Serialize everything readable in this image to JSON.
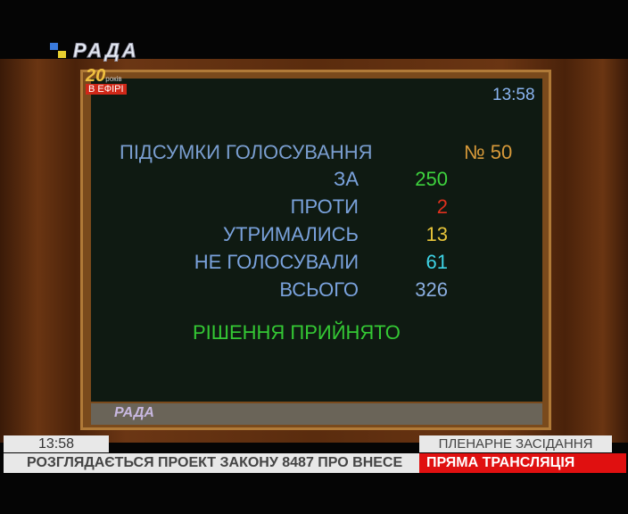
{
  "channel": {
    "logo": "РАДА",
    "anniversary_number": "20",
    "anniversary_unit": "років",
    "anniversary_caption": "В ЕФІРІ"
  },
  "board": {
    "time": "13:58",
    "title": "ПІДСУМКИ ГОЛОСУВАННЯ",
    "vote_number": "№ 50",
    "rows": [
      {
        "label": "ЗА",
        "value": "250",
        "color": "#3ed23e"
      },
      {
        "label": "ПРОТИ",
        "value": "2",
        "color": "#e0301e"
      },
      {
        "label": "УТРИМАЛИСЬ",
        "value": "13",
        "color": "#e6c43a"
      },
      {
        "label": "НЕ ГОЛОСУВАЛИ",
        "value": "61",
        "color": "#3ed4e6"
      },
      {
        "label": "ВСЬОГО",
        "value": "326",
        "color": "#8aaee0"
      }
    ],
    "decision": "РІШЕННЯ ПРИЙНЯТО",
    "footer_logo": "РАДА"
  },
  "lower_third": {
    "time": "13:58",
    "session": "ПЛЕНАРНЕ ЗАСІДАННЯ",
    "ticker": "РОЗГЛЯДАЄТЬСЯ ПРОЕКТ ЗАКОНУ 8487 ПРО ВНЕСЕ",
    "live": "ПРЯМА ТРАНСЛЯЦІЯ"
  }
}
